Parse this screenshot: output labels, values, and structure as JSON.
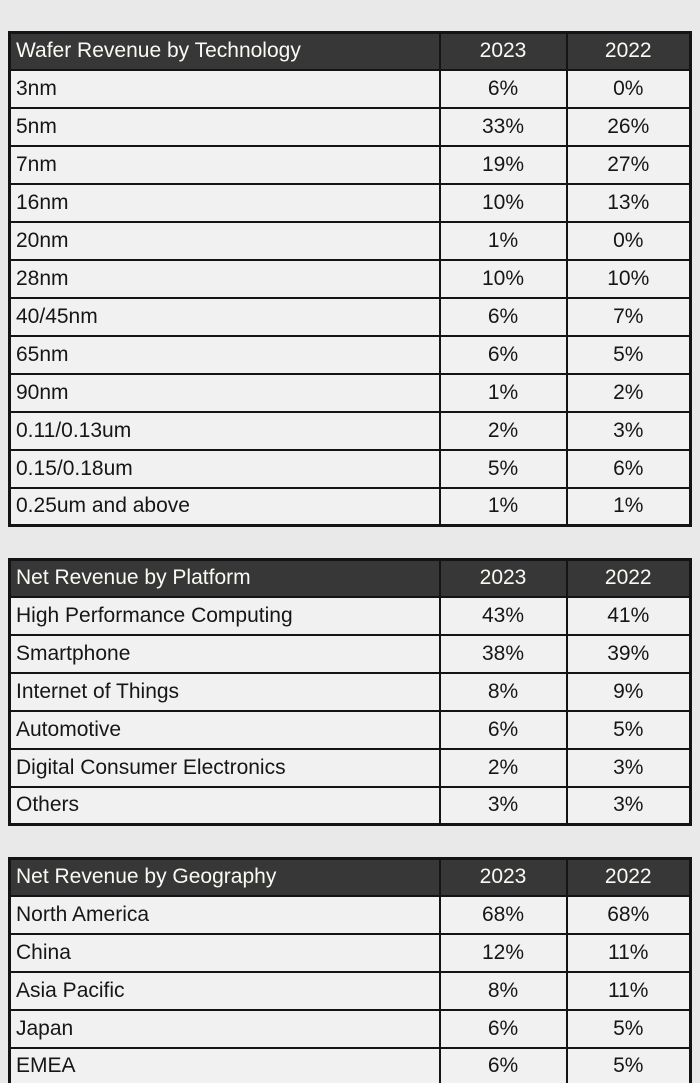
{
  "theme": {
    "page_bg": "#e9e9e9",
    "header_bg": "#373737",
    "header_text": "#fbf9f3",
    "row_bg": "#f1f1f1",
    "row_text": "#161616",
    "border": "#141414"
  },
  "tables": [
    {
      "title": "Wafer Revenue by Technology",
      "columns": [
        "2023",
        "2022"
      ],
      "rows": [
        {
          "label": "3nm",
          "values": [
            "6%",
            "0%"
          ]
        },
        {
          "label": "5nm",
          "values": [
            "33%",
            "26%"
          ]
        },
        {
          "label": "7nm",
          "values": [
            "19%",
            "27%"
          ]
        },
        {
          "label": "16nm",
          "values": [
            "10%",
            "13%"
          ]
        },
        {
          "label": "20nm",
          "values": [
            "1%",
            "0%"
          ]
        },
        {
          "label": "28nm",
          "values": [
            "10%",
            "10%"
          ]
        },
        {
          "label": "40/45nm",
          "values": [
            "6%",
            "7%"
          ]
        },
        {
          "label": "65nm",
          "values": [
            "6%",
            "5%"
          ]
        },
        {
          "label": "90nm",
          "values": [
            "1%",
            "2%"
          ]
        },
        {
          "label": "0.11/0.13um",
          "values": [
            "2%",
            "3%"
          ]
        },
        {
          "label": "0.15/0.18um",
          "values": [
            "5%",
            "6%"
          ]
        },
        {
          "label": "0.25um and above",
          "values": [
            "1%",
            "1%"
          ]
        }
      ]
    },
    {
      "title": "Net Revenue by Platform",
      "columns": [
        "2023",
        "2022"
      ],
      "rows": [
        {
          "label": "High Performance Computing",
          "values": [
            "43%",
            "41%"
          ]
        },
        {
          "label": "Smartphone",
          "values": [
            "38%",
            "39%"
          ]
        },
        {
          "label": "Internet of Things",
          "values": [
            "8%",
            "9%"
          ]
        },
        {
          "label": "Automotive",
          "values": [
            "6%",
            "5%"
          ]
        },
        {
          "label": "Digital Consumer Electronics",
          "values": [
            "2%",
            "3%"
          ]
        },
        {
          "label": "Others",
          "values": [
            "3%",
            "3%"
          ]
        }
      ]
    },
    {
      "title": "Net Revenue by Geography",
      "columns": [
        "2023",
        "2022"
      ],
      "rows": [
        {
          "label": "North America",
          "values": [
            "68%",
            "68%"
          ]
        },
        {
          "label": "China",
          "values": [
            "12%",
            "11%"
          ]
        },
        {
          "label": "Asia Pacific",
          "values": [
            "8%",
            "11%"
          ]
        },
        {
          "label": "Japan",
          "values": [
            "6%",
            "5%"
          ]
        },
        {
          "label": "EMEA",
          "values": [
            "6%",
            "5%"
          ]
        }
      ]
    }
  ]
}
